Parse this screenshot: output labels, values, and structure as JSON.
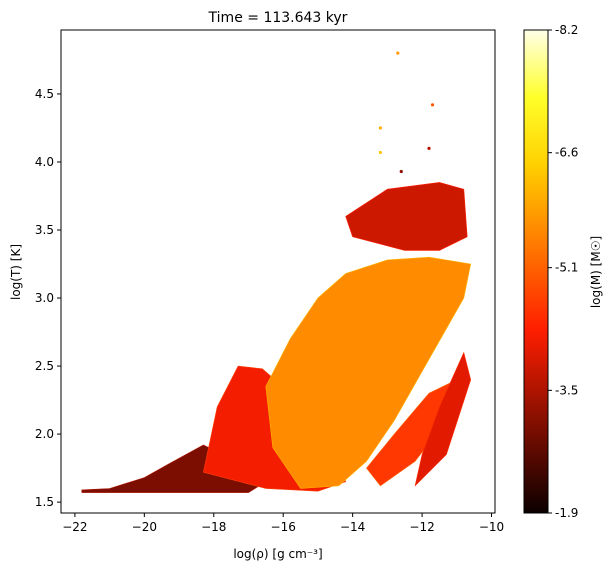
{
  "chart_data": {
    "type": "scatter",
    "title": "Time = 113.643 kyr",
    "xlabel": "log(ρ) [g cm⁻³]",
    "ylabel": "log(T) [K]",
    "xlim": [
      -22.4,
      -9.9
    ],
    "ylim": [
      1.42,
      4.97
    ],
    "xticks": [
      -22,
      -20,
      -18,
      -16,
      -14,
      -12,
      -10
    ],
    "yticks": [
      1.5,
      2.0,
      2.5,
      3.0,
      3.5,
      4.0,
      4.5
    ],
    "colorbar": {
      "label": "log(M) [M☉]",
      "range": [
        -8.2,
        -1.9
      ],
      "ticks": [
        "-1.9",
        "-3.5",
        "-5.1",
        "-6.6",
        "-8.2"
      ],
      "tick_values": [
        -1.9,
        -3.5,
        -5.1,
        -6.6,
        -8.2
      ],
      "colormap": "hot"
    },
    "regions": [
      {
        "name": "low-density-base",
        "outline": [
          [
            -21.8,
            1.57
          ],
          [
            -19.8,
            1.57
          ],
          [
            -17.0,
            1.57
          ],
          [
            -16.5,
            1.65
          ],
          [
            -17.2,
            1.78
          ],
          [
            -18.3,
            1.92
          ],
          [
            -19.3,
            1.78
          ],
          [
            -20.0,
            1.68
          ],
          [
            -21.0,
            1.6
          ],
          [
            -21.8,
            1.59
          ]
        ],
        "logM": -3.0
      },
      {
        "name": "lower-arm",
        "outline": [
          [
            -18.3,
            1.72
          ],
          [
            -16.5,
            1.6
          ],
          [
            -15.0,
            1.58
          ],
          [
            -14.2,
            1.65
          ],
          [
            -14.7,
            2.0
          ],
          [
            -15.8,
            2.3
          ],
          [
            -16.6,
            2.48
          ],
          [
            -17.3,
            2.5
          ],
          [
            -17.9,
            2.2
          ]
        ],
        "logM": -4.2
      },
      {
        "name": "main-body",
        "outline": [
          [
            -16.5,
            2.35
          ],
          [
            -15.8,
            2.7
          ],
          [
            -15.0,
            3.0
          ],
          [
            -14.2,
            3.18
          ],
          [
            -13.0,
            3.28
          ],
          [
            -11.8,
            3.3
          ],
          [
            -10.6,
            3.25
          ],
          [
            -10.8,
            3.0
          ],
          [
            -11.8,
            2.55
          ],
          [
            -12.8,
            2.1
          ],
          [
            -13.6,
            1.8
          ],
          [
            -14.4,
            1.62
          ],
          [
            -15.5,
            1.6
          ],
          [
            -16.3,
            1.9
          ]
        ],
        "logM": -5.6
      },
      {
        "name": "dense-arm-1",
        "outline": [
          [
            -13.2,
            1.62
          ],
          [
            -12.2,
            1.8
          ],
          [
            -11.3,
            2.1
          ],
          [
            -11.0,
            2.4
          ],
          [
            -11.8,
            2.3
          ],
          [
            -12.8,
            2.0
          ],
          [
            -13.6,
            1.75
          ]
        ],
        "logM": -4.6
      },
      {
        "name": "dense-arm-2",
        "outline": [
          [
            -12.2,
            1.62
          ],
          [
            -11.3,
            1.85
          ],
          [
            -10.6,
            2.4
          ],
          [
            -10.8,
            2.6
          ],
          [
            -11.5,
            2.2
          ],
          [
            -12.0,
            1.85
          ]
        ],
        "logM": -4.0
      },
      {
        "name": "upper-band",
        "outline": [
          [
            -14.2,
            3.6
          ],
          [
            -13.0,
            3.8
          ],
          [
            -11.5,
            3.85
          ],
          [
            -10.8,
            3.8
          ],
          [
            -10.7,
            3.45
          ],
          [
            -11.5,
            3.35
          ],
          [
            -12.5,
            3.35
          ],
          [
            -14.0,
            3.45
          ]
        ],
        "logM": -3.8
      }
    ],
    "outlier_points": [
      {
        "x": -12.7,
        "y": 4.8,
        "logM": -5.8
      },
      {
        "x": -11.7,
        "y": 4.42,
        "logM": -5.0
      },
      {
        "x": -13.2,
        "y": 4.25,
        "logM": -6.0
      },
      {
        "x": -13.2,
        "y": 4.07,
        "logM": -6.3
      },
      {
        "x": -11.8,
        "y": 4.1,
        "logM": -3.6
      },
      {
        "x": -12.6,
        "y": 3.93,
        "logM": -3.2
      }
    ]
  }
}
